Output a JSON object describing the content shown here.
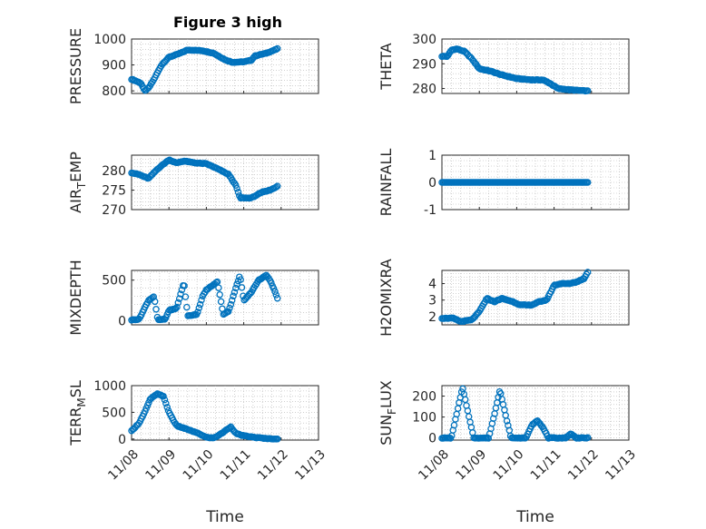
{
  "figure": {
    "title": "Figure 3 high"
  },
  "colors": {
    "marker": "#0072BD",
    "axes": "#262626",
    "grid": "#b4b4b4"
  },
  "chart_data": [
    {
      "type": "scatter",
      "ylabel": "PRESSURE",
      "marker": "open-circle",
      "xlim": [
        0,
        5
      ],
      "ylim": [
        790,
        1000
      ],
      "yticks": [
        800,
        900,
        1000
      ],
      "yticklabels": [
        "800",
        "900",
        "1000"
      ],
      "x_day_range": [
        0,
        3.9
      ],
      "points": 120,
      "grid": true,
      "trend": [
        [
          0,
          845
        ],
        [
          0.25,
          830
        ],
        [
          0.35,
          800
        ],
        [
          0.45,
          810
        ],
        [
          0.6,
          845
        ],
        [
          0.8,
          900
        ],
        [
          1.0,
          930
        ],
        [
          1.3,
          945
        ],
        [
          1.5,
          958
        ],
        [
          1.9,
          955
        ],
        [
          2.2,
          945
        ],
        [
          2.5,
          920
        ],
        [
          2.7,
          910
        ],
        [
          3.0,
          912
        ],
        [
          3.2,
          918
        ],
        [
          3.3,
          935
        ],
        [
          3.6,
          945
        ],
        [
          3.9,
          962
        ]
      ]
    },
    {
      "type": "scatter",
      "ylabel": "THETA",
      "marker": "open-circle",
      "xlim": [
        0,
        5
      ],
      "ylim": [
        278,
        300
      ],
      "yticks": [
        280,
        290,
        300
      ],
      "yticklabels": [
        "280",
        "290",
        "300"
      ],
      "x_day_range": [
        0,
        3.9
      ],
      "points": 120,
      "grid": true,
      "trend": [
        [
          0,
          293
        ],
        [
          0.15,
          293
        ],
        [
          0.25,
          295.5
        ],
        [
          0.4,
          296
        ],
        [
          0.6,
          295
        ],
        [
          0.8,
          292
        ],
        [
          1.0,
          288
        ],
        [
          1.3,
          287
        ],
        [
          1.6,
          285.5
        ],
        [
          2.0,
          284
        ],
        [
          2.4,
          283.5
        ],
        [
          2.7,
          283.5
        ],
        [
          2.9,
          282
        ],
        [
          3.1,
          280
        ],
        [
          3.4,
          279.5
        ],
        [
          3.9,
          279
        ]
      ]
    },
    {
      "type": "scatter",
      "ylabel": "AIR_TEMP",
      "marker": "open-circle",
      "xlim": [
        0,
        5
      ],
      "ylim": [
        270,
        284
      ],
      "yticks": [
        270,
        275,
        280
      ],
      "yticklabels": [
        "270",
        "275",
        "280"
      ],
      "x_day_range": [
        0,
        3.9
      ],
      "points": 120,
      "grid": true,
      "trend": [
        [
          0,
          279.5
        ],
        [
          0.2,
          279
        ],
        [
          0.45,
          278
        ],
        [
          0.7,
          280.5
        ],
        [
          1.0,
          282.8
        ],
        [
          1.2,
          282
        ],
        [
          1.4,
          282.5
        ],
        [
          1.7,
          282
        ],
        [
          2.0,
          281.8
        ],
        [
          2.3,
          280.5
        ],
        [
          2.6,
          279
        ],
        [
          2.8,
          276
        ],
        [
          2.9,
          273
        ],
        [
          3.2,
          273
        ],
        [
          3.5,
          274.5
        ],
        [
          3.7,
          275
        ],
        [
          3.9,
          276
        ]
      ]
    },
    {
      "type": "scatter",
      "ylabel": "RAINFALL",
      "marker": "open-circle",
      "xlim": [
        0,
        5
      ],
      "ylim": [
        -1,
        1
      ],
      "yticks": [
        -1,
        0,
        1
      ],
      "yticklabels": [
        "-1",
        "0",
        "1"
      ],
      "x_day_range": [
        0,
        3.9
      ],
      "points": 120,
      "grid": true,
      "trend": [
        [
          0,
          0
        ],
        [
          3.9,
          0
        ]
      ]
    },
    {
      "type": "scatter",
      "ylabel": "MIXDEPTH",
      "marker": "open-circle",
      "xlim": [
        0,
        5
      ],
      "ylim": [
        -50,
        620
      ],
      "yticks": [
        0,
        500
      ],
      "yticklabels": [
        "0",
        "500"
      ],
      "x_day_range": [
        0,
        3.9
      ],
      "points": 120,
      "grid": true,
      "trend": [
        [
          0,
          10
        ],
        [
          0.2,
          20
        ],
        [
          0.45,
          250
        ],
        [
          0.6,
          300
        ],
        [
          0.7,
          10
        ],
        [
          0.9,
          20
        ],
        [
          1.0,
          130
        ],
        [
          1.2,
          150
        ],
        [
          1.4,
          470
        ],
        [
          1.5,
          60
        ],
        [
          1.75,
          80
        ],
        [
          1.9,
          300
        ],
        [
          2.0,
          380
        ],
        [
          2.3,
          480
        ],
        [
          2.45,
          80
        ],
        [
          2.6,
          120
        ],
        [
          2.75,
          350
        ],
        [
          2.9,
          560
        ],
        [
          3.0,
          250
        ],
        [
          3.2,
          350
        ],
        [
          3.4,
          500
        ],
        [
          3.6,
          560
        ],
        [
          3.7,
          500
        ],
        [
          3.8,
          400
        ],
        [
          3.9,
          280
        ]
      ]
    },
    {
      "type": "scatter",
      "ylabel": "H2OMIXRA",
      "marker": "open-circle",
      "xlim": [
        0,
        5
      ],
      "ylim": [
        1.5,
        4.8
      ],
      "yticks": [
        2,
        3,
        4
      ],
      "yticklabels": [
        "2",
        "3",
        "4"
      ],
      "x_day_range": [
        0,
        3.9
      ],
      "points": 120,
      "grid": true,
      "trend": [
        [
          0,
          1.9
        ],
        [
          0.3,
          1.9
        ],
        [
          0.5,
          1.7
        ],
        [
          0.8,
          1.8
        ],
        [
          1.0,
          2.3
        ],
        [
          1.2,
          3.1
        ],
        [
          1.4,
          2.9
        ],
        [
          1.6,
          3.1
        ],
        [
          1.9,
          2.9
        ],
        [
          2.1,
          2.7
        ],
        [
          2.4,
          2.7
        ],
        [
          2.6,
          2.9
        ],
        [
          2.8,
          3.0
        ],
        [
          3.0,
          3.9
        ],
        [
          3.2,
          4.0
        ],
        [
          3.4,
          4.0
        ],
        [
          3.6,
          4.1
        ],
        [
          3.8,
          4.3
        ],
        [
          3.9,
          4.7
        ]
      ]
    },
    {
      "type": "scatter",
      "ylabel": "TERR_MSL",
      "marker": "open-circle",
      "xlim": [
        0,
        5
      ],
      "ylim": [
        -20,
        1000
      ],
      "yticks": [
        0,
        500,
        1000
      ],
      "yticklabels": [
        "0",
        "500",
        "1000"
      ],
      "x_day_range": [
        0,
        3.9
      ],
      "points": 120,
      "grid": true,
      "trend": [
        [
          0,
          150
        ],
        [
          0.2,
          300
        ],
        [
          0.35,
          500
        ],
        [
          0.5,
          750
        ],
        [
          0.7,
          850
        ],
        [
          0.85,
          800
        ],
        [
          1.0,
          500
        ],
        [
          1.2,
          250
        ],
        [
          1.5,
          180
        ],
        [
          1.8,
          100
        ],
        [
          2.0,
          30
        ],
        [
          2.2,
          20
        ],
        [
          2.4,
          100
        ],
        [
          2.65,
          230
        ],
        [
          2.8,
          100
        ],
        [
          3.0,
          60
        ],
        [
          3.3,
          30
        ],
        [
          3.6,
          10
        ],
        [
          3.9,
          0
        ]
      ]
    },
    {
      "type": "scatter",
      "ylabel": "SUN_FLUX",
      "marker": "open-circle",
      "xlim": [
        0,
        5
      ],
      "ylim": [
        -10,
        250
      ],
      "yticks": [
        0,
        100,
        200
      ],
      "yticklabels": [
        "0",
        "100",
        "200"
      ],
      "x_day_range": [
        0,
        3.9
      ],
      "points": 120,
      "grid": true,
      "trend": [
        [
          0,
          0
        ],
        [
          0.25,
          0
        ],
        [
          0.4,
          120
        ],
        [
          0.55,
          240
        ],
        [
          0.7,
          120
        ],
        [
          0.85,
          0
        ],
        [
          1.25,
          0
        ],
        [
          1.4,
          110
        ],
        [
          1.55,
          230
        ],
        [
          1.7,
          110
        ],
        [
          1.85,
          0
        ],
        [
          2.25,
          0
        ],
        [
          2.4,
          60
        ],
        [
          2.55,
          85
        ],
        [
          2.7,
          50
        ],
        [
          2.85,
          0
        ],
        [
          3.3,
          0
        ],
        [
          3.45,
          20
        ],
        [
          3.6,
          0
        ],
        [
          3.9,
          0
        ]
      ]
    }
  ],
  "x_axis": {
    "label": "Time",
    "ticks": [
      0,
      1,
      2,
      3,
      4,
      5
    ],
    "ticklabels": [
      "11/08",
      "11/09",
      "11/10",
      "11/11",
      "11/12",
      "11/13"
    ]
  }
}
